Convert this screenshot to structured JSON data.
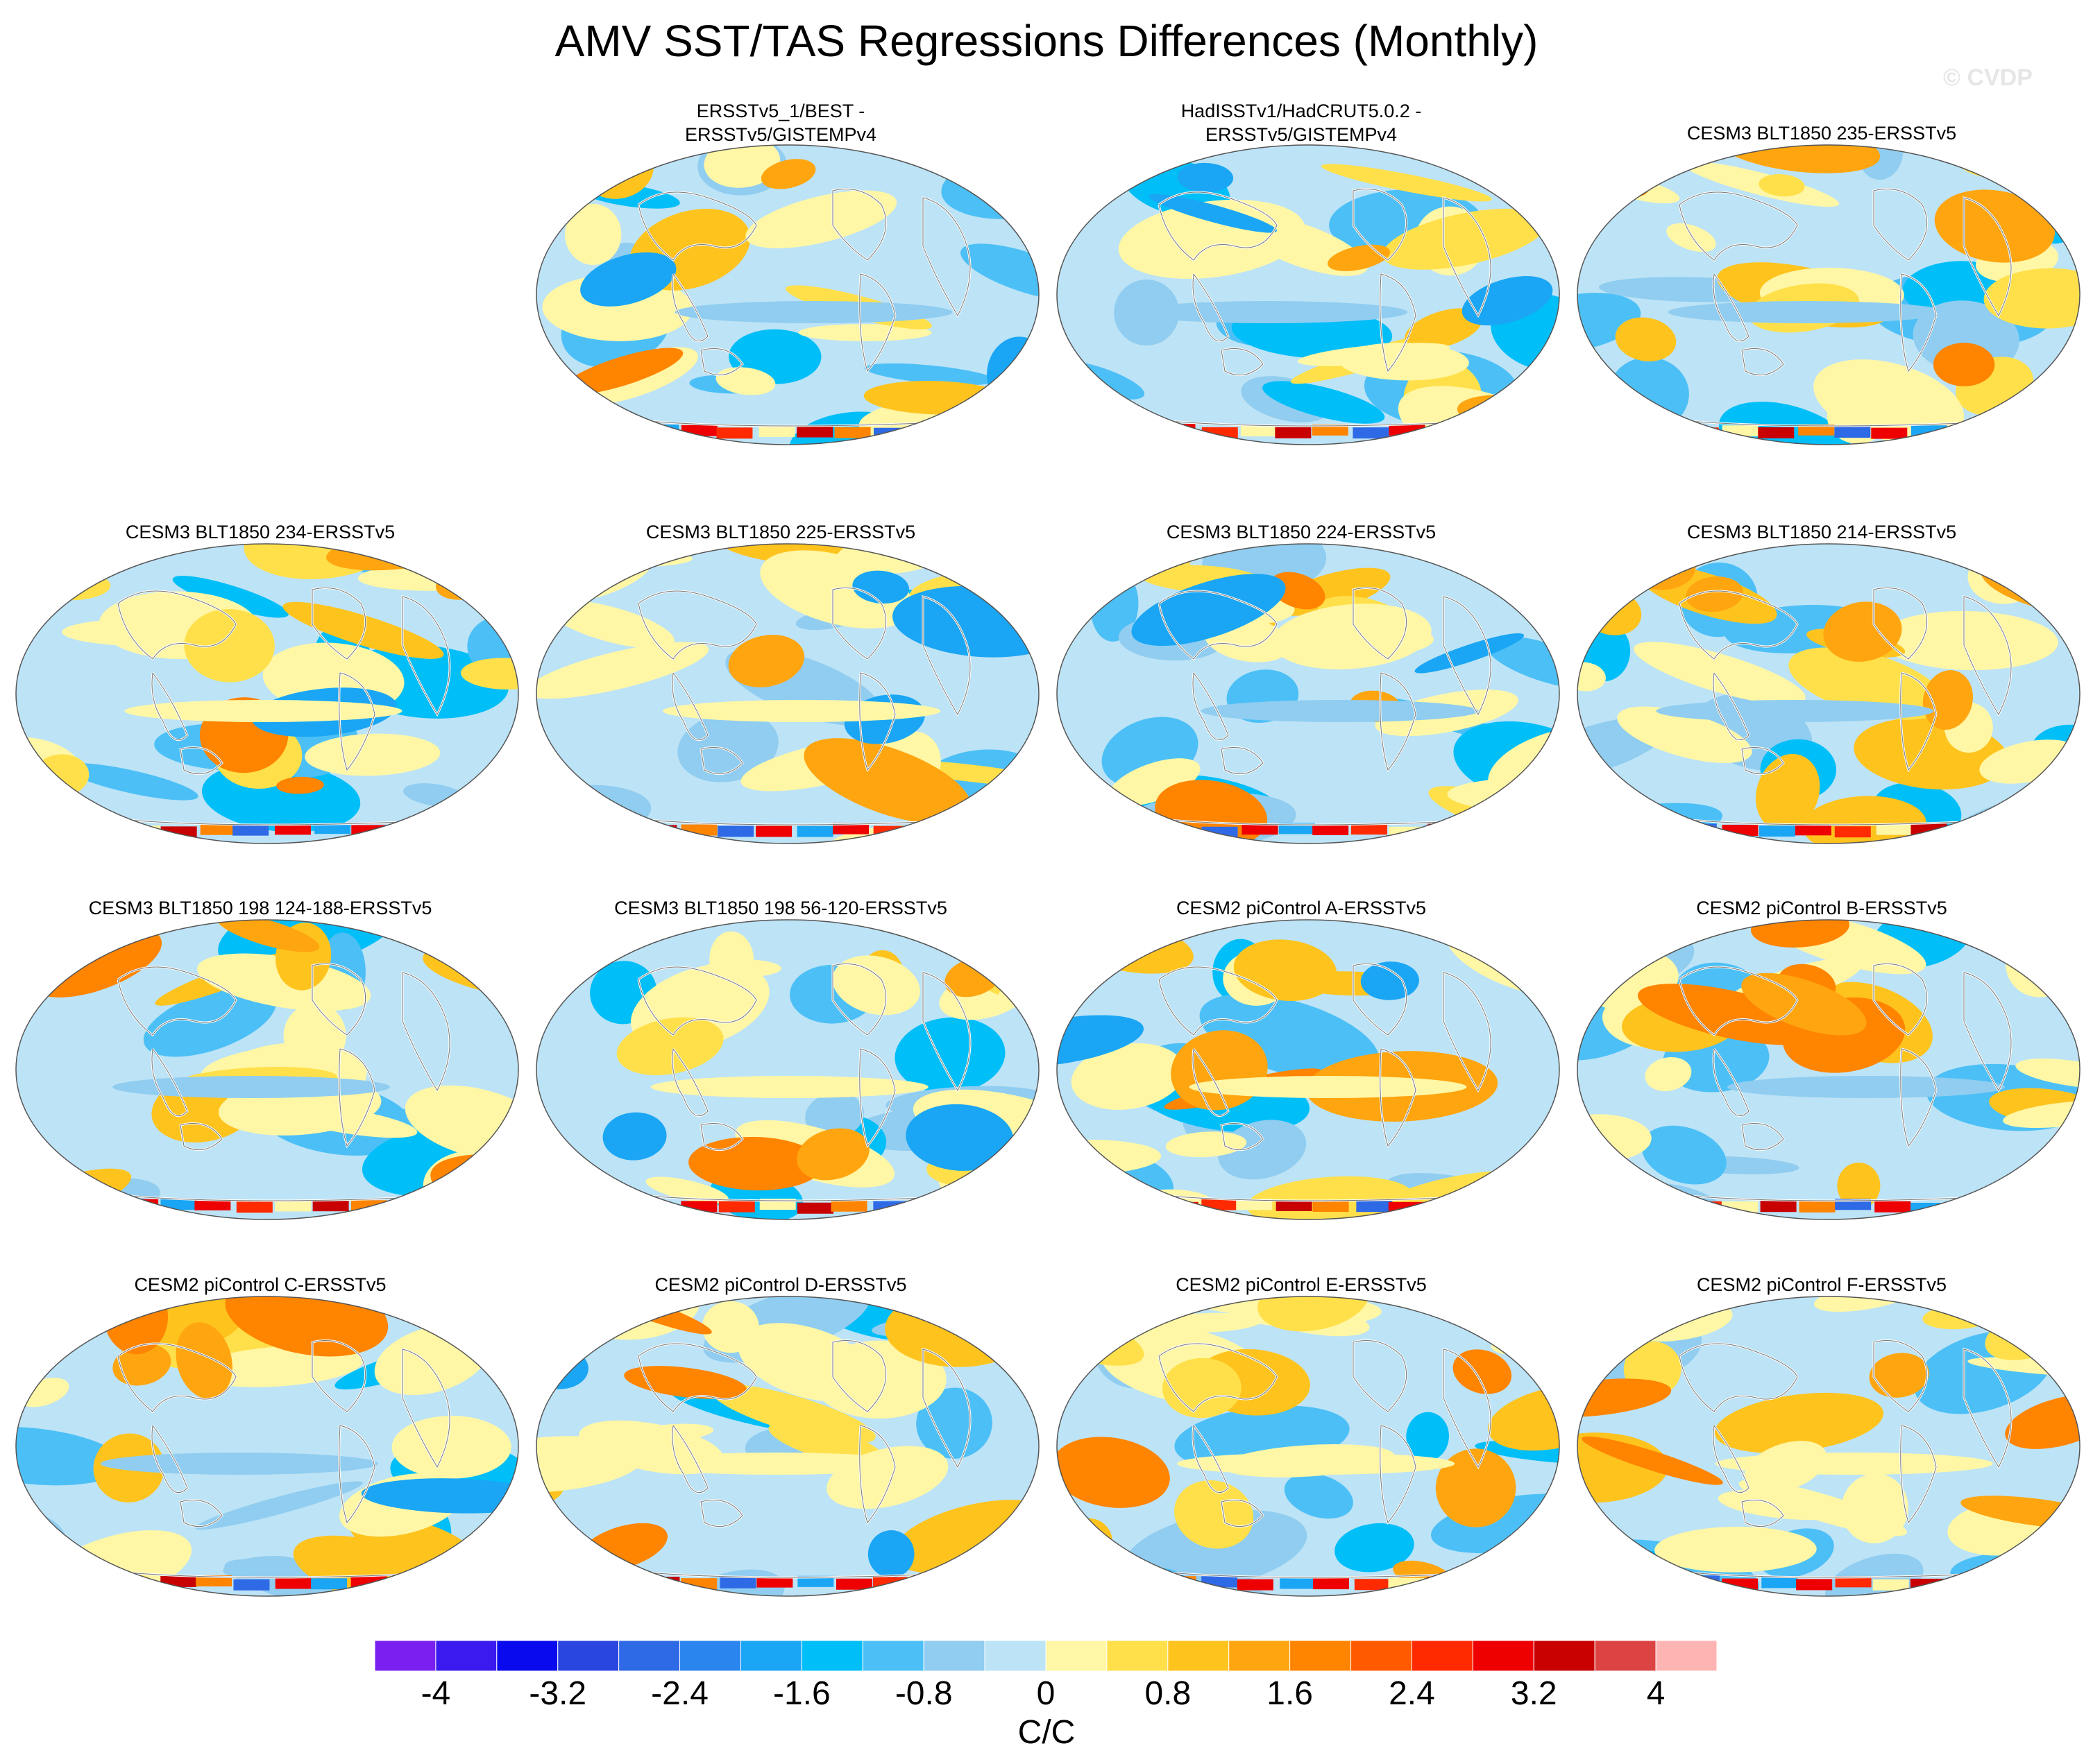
{
  "title": "AMV SST/TAS Regressions Differences (Monthly)",
  "watermark": "© CVDP",
  "chart_data": {
    "type": "heatmap",
    "title": "AMV SST/TAS Regressions Differences (Monthly)",
    "colorbar": {
      "units": "C/C",
      "tick_labels": [
        "-4",
        "-3.2",
        "-2.4",
        "-1.6",
        "-0.8",
        "0",
        "0.8",
        "1.6",
        "2.4",
        "3.2",
        "4"
      ],
      "tick_values": [
        -4,
        -3.2,
        -2.4,
        -1.6,
        -0.8,
        0,
        0.8,
        1.6,
        2.4,
        3.2,
        4
      ],
      "colors": [
        "#7a1ff0",
        "#3a1aee",
        "#0a0aee",
        "#2a46e0",
        "#2f6ae6",
        "#2a86ee",
        "#1aa6f4",
        "#00bef8",
        "#4cc0f6",
        "#90cdf0",
        "#bde3f6",
        "#fff7a6",
        "#ffe04a",
        "#ffc31e",
        "#ffa510",
        "#ff8400",
        "#ff5a00",
        "#ff2a00",
        "#ee0000",
        "#c80000",
        "#dc4444",
        "#ffb4b4"
      ]
    },
    "panels": [
      {
        "title": "ERSSTv5_1/BEST -\nERSSTv5/GISTEMPv4"
      },
      {
        "title": "HadISSTv1/HadCRUT5.0.2 -\nERSSTv5/GISTEMPv4"
      },
      {
        "title": "CESM3 BLT1850 235-ERSSTv5"
      },
      {
        "title": "CESM3 BLT1850 234-ERSSTv5"
      },
      {
        "title": "CESM3 BLT1850 225-ERSSTv5"
      },
      {
        "title": "CESM3 BLT1850 224-ERSSTv5"
      },
      {
        "title": "CESM3 BLT1850 214-ERSSTv5"
      },
      {
        "title": "CESM3 BLT1850 198 124-188-ERSSTv5"
      },
      {
        "title": "CESM3 BLT1850 198 56-120-ERSSTv5"
      },
      {
        "title": "CESM2 piControl A-ERSSTv5"
      },
      {
        "title": "CESM2 piControl B-ERSSTv5"
      },
      {
        "title": "CESM2 piControl C-ERSSTv5"
      },
      {
        "title": "CESM2 piControl D-ERSSTv5"
      },
      {
        "title": "CESM2 piControl E-ERSSTv5"
      },
      {
        "title": "CESM2 piControl F-ERSSTv5"
      }
    ]
  }
}
